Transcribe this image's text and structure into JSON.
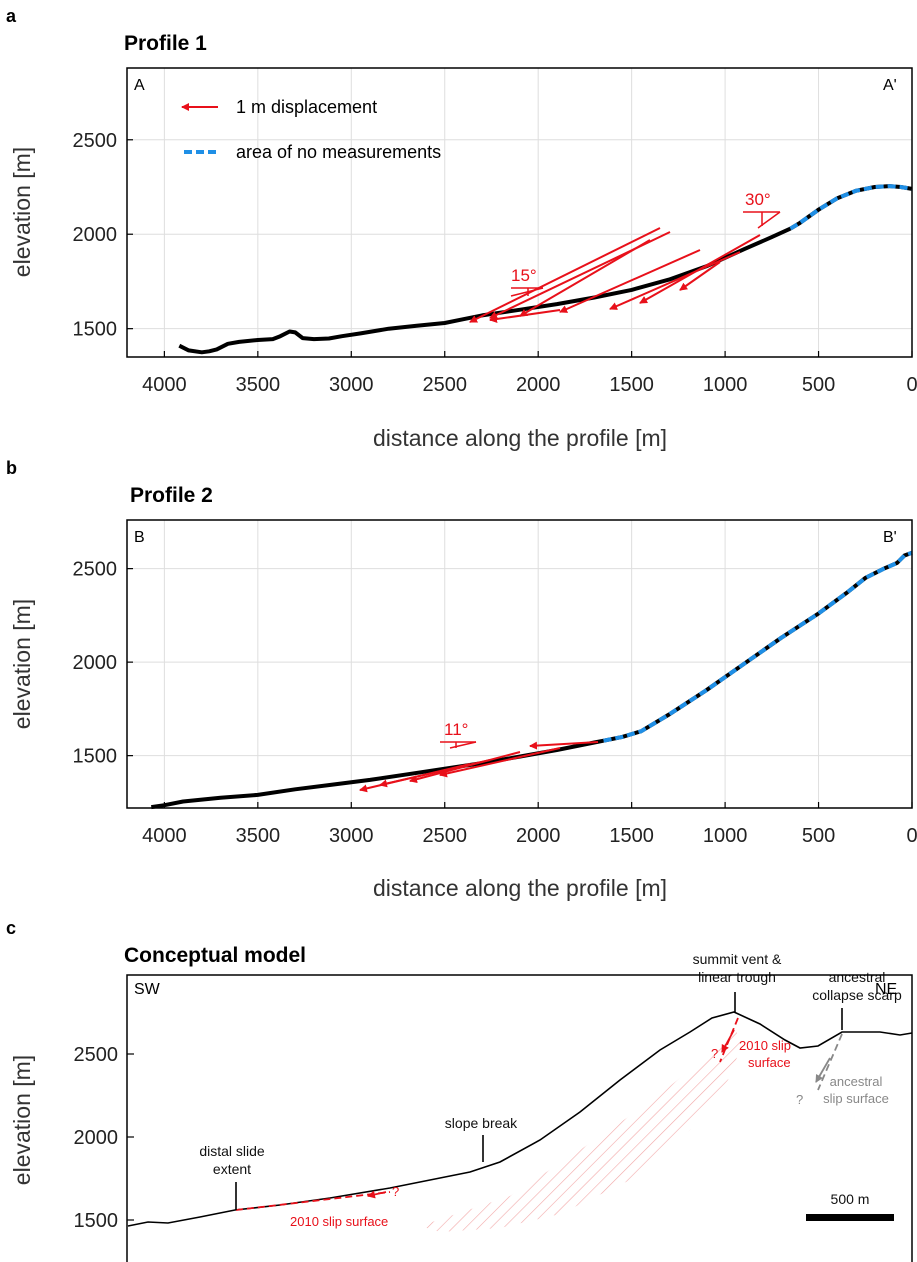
{
  "panels": {
    "a": {
      "letter": "a",
      "title": "Profile 1",
      "left_label": "A",
      "right_label": "A'"
    },
    "b": {
      "letter": "b",
      "title": "Profile 2",
      "left_label": "B",
      "right_label": "B'"
    },
    "c": {
      "letter": "c",
      "title": "Conceptual model",
      "left_label": "SW",
      "right_label": "NE"
    }
  },
  "legend": {
    "arrow": "1 m displacement",
    "dashed": "area of no measurements"
  },
  "annotations": {
    "a": [
      "15°",
      "30°"
    ],
    "b": [
      "11°"
    ],
    "c": {
      "distal_1": "distal slide",
      "distal_2": "extent",
      "slope_break": "slope break",
      "summit_1": "summit vent &",
      "summit_2": "linear trough",
      "ancestral_scarp_1": "ancestral",
      "ancestral_scarp_2": "collapse scarp",
      "slip2010_a_1": "2010 slip",
      "slip2010_a_2": "surface",
      "slip2010_b": "2010 slip surface",
      "ancestral_slip_1": "ancestral",
      "ancestral_slip_2": "slip surface",
      "q": "?",
      "scale": "500 m"
    }
  },
  "colors": {
    "profile": "#000000",
    "no_measure": "#1f8fe6",
    "displacement": "#e8101a",
    "ancestral": "#888888",
    "hatch": "#f2a8a8"
  },
  "chart_data": [
    {
      "type": "line",
      "panel": "a",
      "title": "Profile 1",
      "xlabel": "distance along the profile [m]",
      "ylabel": "elevation [m]",
      "x_reversed": true,
      "xlim": [
        0,
        4200
      ],
      "ylim": [
        1350,
        2880
      ],
      "xticks": [
        4000,
        3500,
        3000,
        2500,
        2000,
        1500,
        1000,
        500,
        0
      ],
      "yticks": [
        1500,
        2000,
        2500
      ],
      "grid": true,
      "series": [
        {
          "name": "profile",
          "x": [
            3920,
            3870,
            3800,
            3760,
            3720,
            3660,
            3600,
            3500,
            3420,
            3380,
            3330,
            3300,
            3260,
            3200,
            3120,
            3050,
            2950,
            2800,
            2650,
            2500,
            2400,
            2300,
            2100,
            1900,
            1700,
            1500,
            1300,
            1100,
            900,
            750,
            650
          ],
          "y": [
            1410,
            1385,
            1375,
            1380,
            1390,
            1420,
            1430,
            1440,
            1445,
            1460,
            1485,
            1480,
            1450,
            1445,
            1448,
            1460,
            1475,
            1500,
            1515,
            1530,
            1550,
            1570,
            1600,
            1630,
            1665,
            1705,
            1760,
            1830,
            1920,
            1985,
            2030
          ]
        },
        {
          "name": "area of no measurements",
          "x": [
            650,
            600,
            500,
            400,
            300,
            200,
            120,
            60,
            0
          ],
          "y": [
            2030,
            2060,
            2130,
            2190,
            2230,
            2250,
            2255,
            2250,
            2240
          ]
        }
      ],
      "legend": [
        "1 m displacement",
        "area of no measurements"
      ],
      "legend_position": "top-left"
    },
    {
      "type": "line",
      "panel": "b",
      "title": "Profile 2",
      "xlabel": "distance along the profile [m]",
      "ylabel": "elevation [m]",
      "x_reversed": true,
      "xlim": [
        0,
        4200
      ],
      "ylim": [
        1220,
        2760
      ],
      "xticks": [
        4000,
        3500,
        3000,
        2500,
        2000,
        1500,
        1000,
        500,
        0
      ],
      "yticks": [
        1500,
        2000,
        2500
      ],
      "grid": true,
      "series": [
        {
          "name": "profile",
          "x": [
            4070,
            4000,
            3900,
            3700,
            3500,
            3300,
            3100,
            2900,
            2700,
            2500,
            2300,
            2100,
            1900,
            1700,
            1650
          ],
          "y": [
            1225,
            1235,
            1255,
            1275,
            1290,
            1320,
            1345,
            1370,
            1400,
            1430,
            1460,
            1495,
            1530,
            1570,
            1580
          ]
        },
        {
          "name": "area of no measurements",
          "x": [
            1650,
            1550,
            1450,
            1300,
            1100,
            900,
            700,
            500,
            350,
            250,
            150,
            80,
            40,
            0
          ],
          "y": [
            1580,
            1600,
            1630,
            1720,
            1850,
            1990,
            2130,
            2260,
            2370,
            2450,
            2500,
            2530,
            2570,
            2585
          ]
        }
      ]
    },
    {
      "type": "line",
      "panel": "c",
      "title": "Conceptual model",
      "ylabel": "elevation [m]",
      "yticks": [
        1500,
        2000,
        2500
      ],
      "grid": false
    }
  ]
}
